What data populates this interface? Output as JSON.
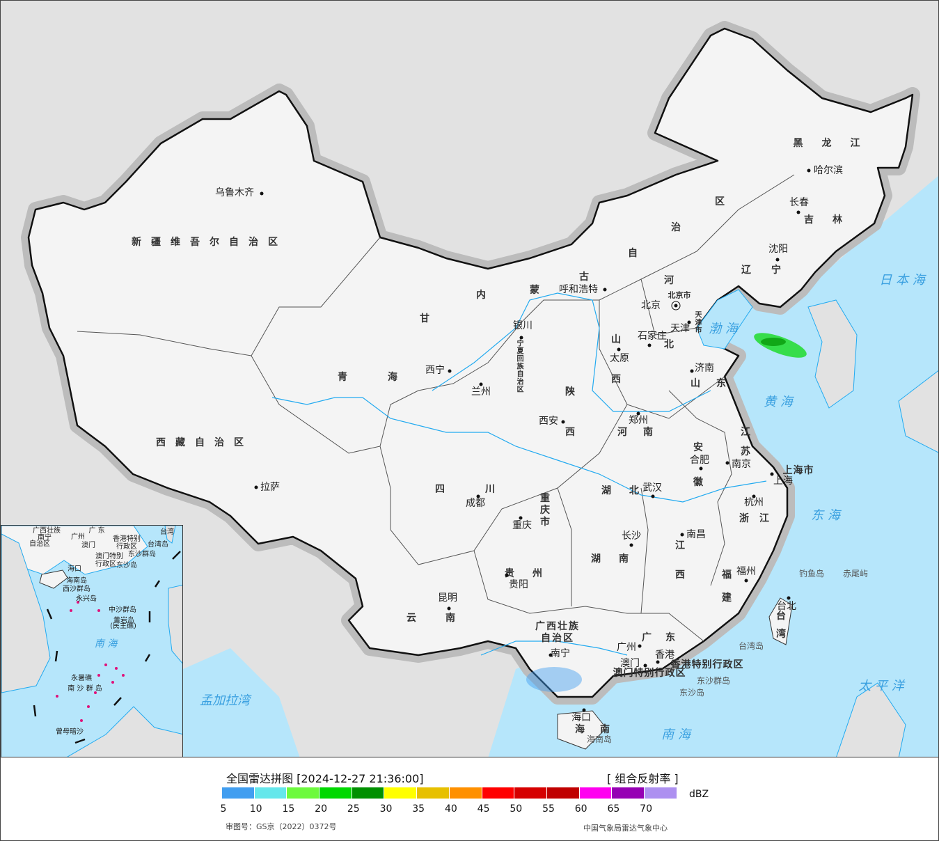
{
  "map": {
    "provinces": [
      {
        "name": "新疆维吾尔自治区"
      },
      {
        "name": "西藏自治区"
      },
      {
        "name": "青海"
      },
      {
        "name": "甘"
      },
      {
        "name": "宁夏回族自治区"
      },
      {
        "name": "内蒙古自治区"
      },
      {
        "name": "黑龙江"
      },
      {
        "name": "吉林"
      },
      {
        "name": "辽宁"
      },
      {
        "name": "河北"
      },
      {
        "name": "山西"
      },
      {
        "name": "山东"
      },
      {
        "name": "河南"
      },
      {
        "name": "陕西"
      },
      {
        "name": "四川"
      },
      {
        "name": "重庆市"
      },
      {
        "name": "湖北"
      },
      {
        "name": "湖南"
      },
      {
        "name": "江西"
      },
      {
        "name": "安徽"
      },
      {
        "name": "江苏"
      },
      {
        "name": "浙江"
      },
      {
        "name": "福建"
      },
      {
        "name": "贵州"
      },
      {
        "name": "云南"
      },
      {
        "name": "广西壮族"
      },
      {
        "name": "自治区"
      },
      {
        "name": "广东"
      },
      {
        "name": "海南"
      },
      {
        "name": "台湾"
      },
      {
        "name": "上海市"
      },
      {
        "name": "北京市"
      },
      {
        "name": "天津市"
      },
      {
        "name": "香港特别行政区"
      },
      {
        "name": "澳门特别行政区"
      }
    ],
    "cities": [
      {
        "name": "乌鲁木齐"
      },
      {
        "name": "拉萨"
      },
      {
        "name": "西宁"
      },
      {
        "name": "兰州"
      },
      {
        "name": "银川"
      },
      {
        "name": "呼和浩特"
      },
      {
        "name": "北京"
      },
      {
        "name": "天津"
      },
      {
        "name": "石家庄"
      },
      {
        "name": "太原"
      },
      {
        "name": "济南"
      },
      {
        "name": "郑州"
      },
      {
        "name": "西安"
      },
      {
        "name": "成都"
      },
      {
        "name": "重庆"
      },
      {
        "name": "武汉"
      },
      {
        "name": "长沙"
      },
      {
        "name": "南昌"
      },
      {
        "name": "合肥"
      },
      {
        "name": "南京"
      },
      {
        "name": "上海"
      },
      {
        "name": "杭州"
      },
      {
        "name": "福州"
      },
      {
        "name": "台北"
      },
      {
        "name": "贵阳"
      },
      {
        "name": "昆明"
      },
      {
        "name": "南宁"
      },
      {
        "name": "广州"
      },
      {
        "name": "澳门"
      },
      {
        "name": "香港"
      },
      {
        "name": "海口"
      },
      {
        "name": "哈尔滨"
      },
      {
        "name": "长春"
      },
      {
        "name": "沈阳"
      }
    ],
    "seas": [
      {
        "name": "渤 海"
      },
      {
        "name": "黄 海"
      },
      {
        "name": "东 海"
      },
      {
        "name": "南 海"
      },
      {
        "name": "太 平 洋"
      },
      {
        "name": "日 本 海"
      },
      {
        "name": "孟加拉湾"
      }
    ],
    "islands": [
      {
        "name": "钓鱼岛"
      },
      {
        "name": "赤尾屿"
      },
      {
        "name": "台湾岛"
      },
      {
        "name": "东沙群岛"
      },
      {
        "name": "东沙岛"
      },
      {
        "name": "海南岛"
      }
    ],
    "inset_labels": [
      {
        "name": "广西壮族"
      },
      {
        "name": "自治区"
      },
      {
        "name": "南宁"
      },
      {
        "name": "广 东"
      },
      {
        "name": "广州"
      },
      {
        "name": "澳门"
      },
      {
        "name": "香港特别"
      },
      {
        "name": "行政区"
      },
      {
        "name": "澳门特别"
      },
      {
        "name": "行政区"
      },
      {
        "name": "台湾"
      },
      {
        "name": "台湾岛"
      },
      {
        "name": "东沙群岛"
      },
      {
        "name": "东沙岛"
      },
      {
        "name": "海口"
      },
      {
        "name": "海南岛"
      },
      {
        "name": "西沙群岛"
      },
      {
        "name": "永兴岛"
      },
      {
        "name": "中沙群岛"
      },
      {
        "name": "黄岩岛"
      },
      {
        "name": "(民主礁)"
      },
      {
        "name": "南 海"
      },
      {
        "name": "永暑礁"
      },
      {
        "name": "南 沙 群 岛"
      },
      {
        "name": "曾母暗沙"
      }
    ],
    "colors": {
      "land": "#f4f4f4",
      "outside_land": "#e2e2e2",
      "sea": "#b6e6fb",
      "river": "#22aaf0",
      "border": "#111111",
      "islands": "#e0127a"
    }
  },
  "legend": {
    "title": "全国雷达拼图 [2024-12-27 21:36:00]",
    "product": "[ 组合反射率 ]",
    "unit": "dBZ",
    "colors": [
      "#419ef0",
      "#64e7eb",
      "#6dfa3d",
      "#00d800",
      "#019001",
      "#ffff00",
      "#e7c000",
      "#ff9000",
      "#ff0000",
      "#d60000",
      "#c00000",
      "#ff00f0",
      "#9600b4",
      "#ad90f0"
    ],
    "ticks": [
      "5",
      "10",
      "15",
      "20",
      "25",
      "30",
      "35",
      "40",
      "45",
      "50",
      "55",
      "60",
      "65",
      "70"
    ],
    "approval_number": "审图号：GS京（2022）0372号",
    "agency": "中国气象局雷达气象中心"
  }
}
